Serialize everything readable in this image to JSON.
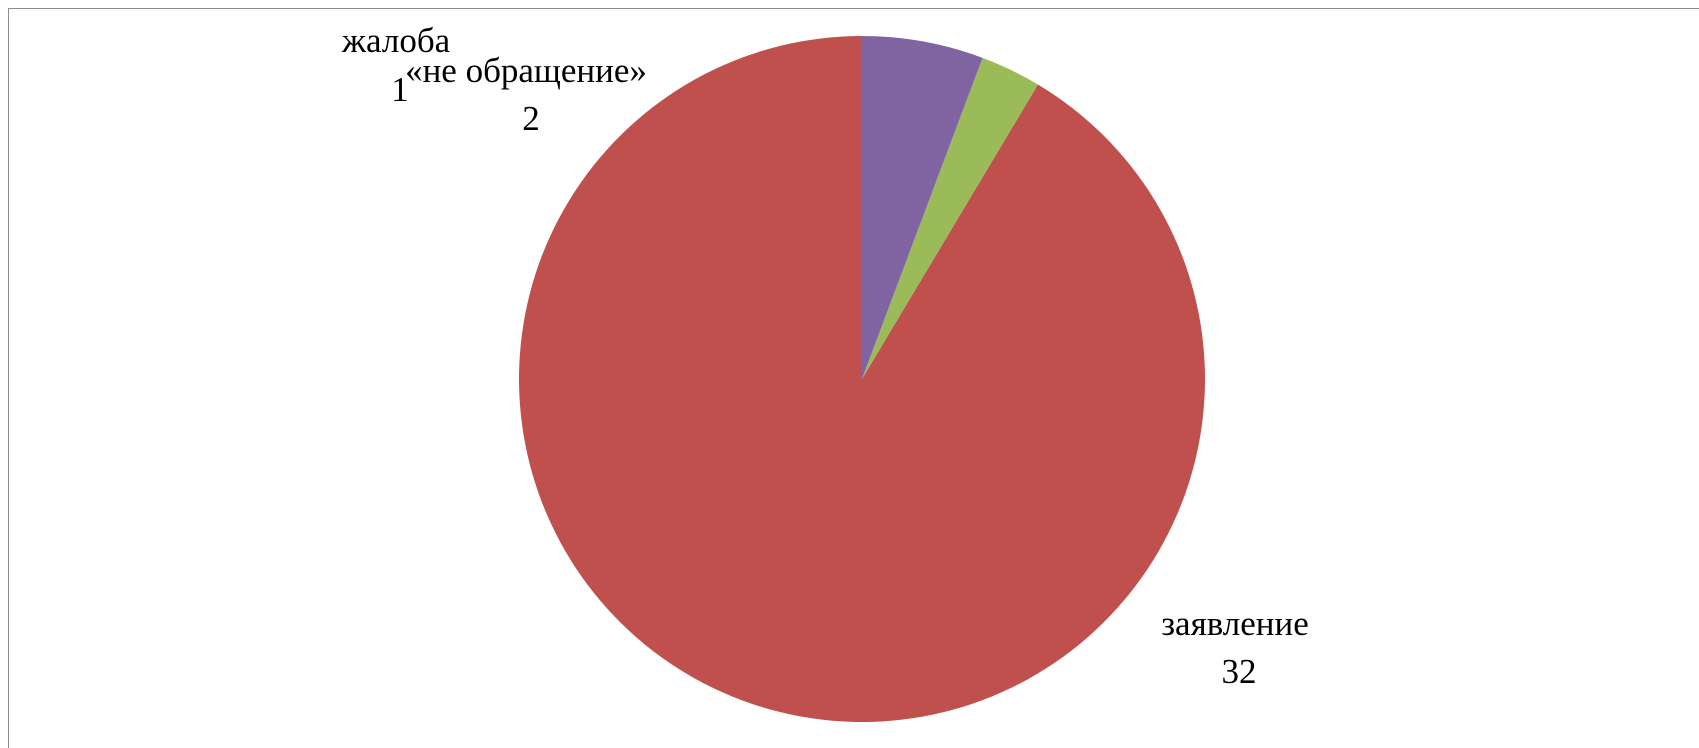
{
  "chart_data": {
    "type": "pie",
    "categories": [
      "заявление",
      "жалоба",
      "«не обращение»"
    ],
    "values": [
      32,
      1,
      2
    ],
    "colors": [
      "#c0504d",
      "#9bbb59",
      "#8064a2"
    ],
    "start_angle_deg": 0,
    "direction": "counterclockwise",
    "labels": [
      {
        "name": "заявление",
        "value": "32"
      },
      {
        "name": "жалоба",
        "value": "1"
      },
      {
        "name": "«не обращение»",
        "value": "2"
      }
    ]
  }
}
